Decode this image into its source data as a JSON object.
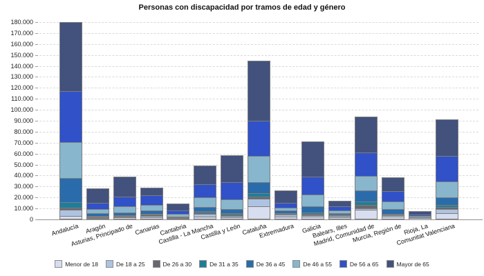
{
  "title": "Personas con discapacidad por tramos de edad y género",
  "chart_data": {
    "type": "bar",
    "stacked": true,
    "title": "Personas con discapacidad por tramos de edad y género",
    "xlabel": "",
    "ylabel": "",
    "ylim": [
      0,
      180000
    ],
    "y_tick_step": 10000,
    "y_tick_labels": [
      "0",
      "10.000",
      "20.000",
      "30.000",
      "40.000",
      "50.000",
      "60.000",
      "70.000",
      "80.000",
      "90.000",
      "100.000",
      "110.000",
      "120.000",
      "130.000",
      "140.000",
      "150.000",
      "160.000",
      "170.000",
      "180.000"
    ],
    "grid": "horizontal-dashed",
    "legend_position": "bottom",
    "bar_border_color": "#7d7d7d",
    "categories": [
      "Andalucía",
      "Aragón",
      "Asturias, Principado de",
      "Canarias",
      "Cantabria",
      "Castilla - La Mancha",
      "Castilla y León",
      "Cataluña",
      "Extremadura",
      "Galicia",
      "Balears, Illes",
      "Madrid, Comunidad de",
      "Murcia, Región de",
      "Rioja, La",
      "Comunitat Valenciana"
    ],
    "series": [
      {
        "name": "Menor de 18",
        "color": "#d8ddef",
        "values": [
          2500,
          800,
          1000,
          1500,
          300,
          2100,
          1300,
          11200,
          2000,
          2100,
          1500,
          8200,
          1600,
          300,
          5300
        ]
      },
      {
        "name": "De 18 a 25",
        "color": "#aec3e2",
        "values": [
          5500,
          700,
          800,
          1200,
          300,
          2000,
          1500,
          6900,
          1500,
          1200,
          900,
          1500,
          1400,
          250,
          3600
        ]
      },
      {
        "name": "De 26 a 30",
        "color": "#68686e",
        "values": [
          2100,
          500,
          500,
          800,
          250,
          1400,
          1200,
          1900,
          800,
          1100,
          500,
          3000,
          800,
          150,
          1600
        ]
      },
      {
        "name": "De 31 a 35",
        "color": "#1e7e99",
        "values": [
          4800,
          800,
          900,
          1000,
          400,
          1600,
          1300,
          3100,
          1000,
          1200,
          700,
          3000,
          900,
          200,
          1900
        ]
      },
      {
        "name": "De 36 a 45",
        "color": "#2a6cab",
        "values": [
          22500,
          2500,
          2500,
          3000,
          900,
          3600,
          3700,
          10100,
          2500,
          5700,
          1600,
          10000,
          3800,
          600,
          6900
        ]
      },
      {
        "name": "De 46 a 55",
        "color": "#88b6cd",
        "values": [
          32500,
          3800,
          5500,
          5200,
          2300,
          8600,
          8900,
          24200,
          2500,
          10500,
          2200,
          13500,
          7500,
          800,
          14700
        ]
      },
      {
        "name": "De 56 a 65",
        "color": "#3051c8",
        "values": [
          46500,
          5600,
          9000,
          8600,
          3000,
          11900,
          15300,
          32100,
          4300,
          16800,
          3800,
          21500,
          9200,
          1700,
          23100
        ]
      },
      {
        "name": "Mayor de 65",
        "color": "#42527d",
        "values": [
          62500,
          12200,
          17800,
          6200,
          5800,
          16400,
          24200,
          54100,
          10500,
          31100,
          4300,
          32000,
          12200,
          2500,
          33000
        ]
      }
    ]
  }
}
